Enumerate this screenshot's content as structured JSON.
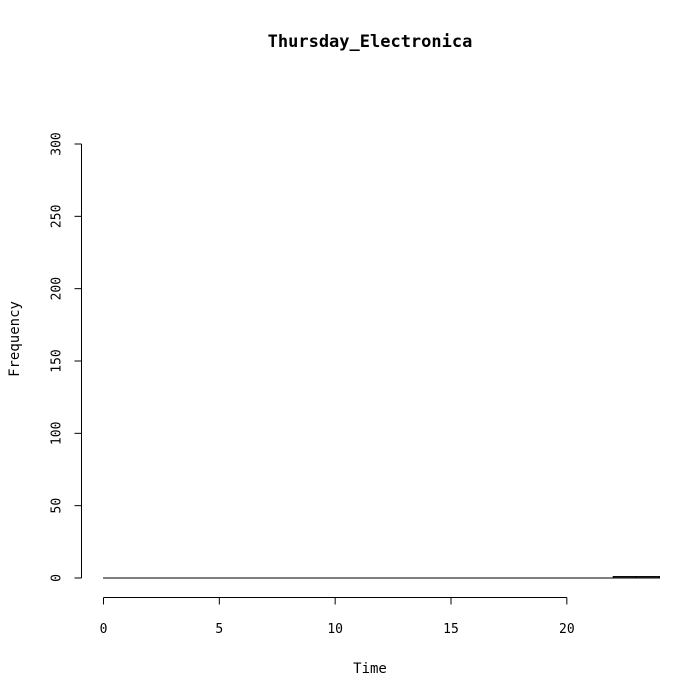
{
  "chart_data": {
    "type": "bar",
    "title": "Thursday_Electronica",
    "xlabel": "Time",
    "ylabel": "Frequency",
    "xlim": [
      0,
      24
    ],
    "ylim": [
      0,
      300
    ],
    "x_ticks": [
      0,
      5,
      10,
      15,
      20
    ],
    "y_ticks": [
      0,
      50,
      100,
      150,
      200,
      250,
      300
    ],
    "bins": [
      {
        "start": 0,
        "end": 1,
        "count": 0
      },
      {
        "start": 1,
        "end": 2,
        "count": 0
      },
      {
        "start": 2,
        "end": 3,
        "count": 0
      },
      {
        "start": 3,
        "end": 4,
        "count": 0
      },
      {
        "start": 4,
        "end": 5,
        "count": 0
      },
      {
        "start": 5,
        "end": 6,
        "count": 0
      },
      {
        "start": 6,
        "end": 7,
        "count": 0
      },
      {
        "start": 7,
        "end": 8,
        "count": 0
      },
      {
        "start": 8,
        "end": 9,
        "count": 0
      },
      {
        "start": 9,
        "end": 10,
        "count": 0
      },
      {
        "start": 10,
        "end": 11,
        "count": 0
      },
      {
        "start": 11,
        "end": 12,
        "count": 0
      },
      {
        "start": 12,
        "end": 13,
        "count": 0
      },
      {
        "start": 13,
        "end": 14,
        "count": 0
      },
      {
        "start": 14,
        "end": 15,
        "count": 0
      },
      {
        "start": 15,
        "end": 16,
        "count": 0
      },
      {
        "start": 16,
        "end": 17,
        "count": 0
      },
      {
        "start": 17,
        "end": 18,
        "count": 0
      },
      {
        "start": 18,
        "end": 19,
        "count": 0
      },
      {
        "start": 19,
        "end": 20,
        "count": 0
      },
      {
        "start": 20,
        "end": 21,
        "count": 0
      },
      {
        "start": 21,
        "end": 22,
        "count": 0
      },
      {
        "start": 22,
        "end": 23,
        "count": 1
      },
      {
        "start": 23,
        "end": 24,
        "count": 1
      }
    ],
    "bar_color": "#006400",
    "bar_border_color": "#000000",
    "grid": false,
    "legend": "none"
  }
}
